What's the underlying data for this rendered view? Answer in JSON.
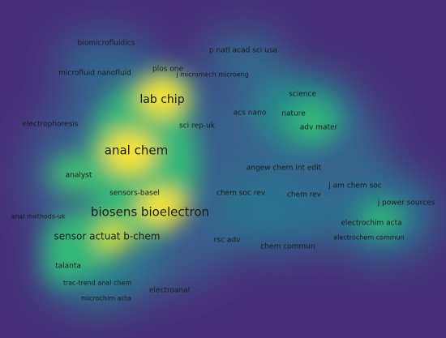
{
  "labels": [
    "biomicrofluidics",
    "p natl acad sci usa",
    "plos one",
    "microfluid nanofluid",
    "j micromech microeng",
    "lab chip",
    "science",
    "acs nano",
    "nature",
    "electrophoresis",
    "sci rep-uk",
    "adv mater",
    "anal chem",
    "angew chem int edit",
    "analyst",
    "j am chem soc",
    "sensors-basel",
    "chem soc rev",
    "chem rev",
    "j power sources",
    "biosens bioelectron",
    "anal methods-uk",
    "electrochim acta",
    "sensor actuat b-chem",
    "rsc adv",
    "electrochem commun",
    "chem commun",
    "talanta",
    "trac-trend anal chem",
    "electroanal",
    "microchim acta"
  ]
}
